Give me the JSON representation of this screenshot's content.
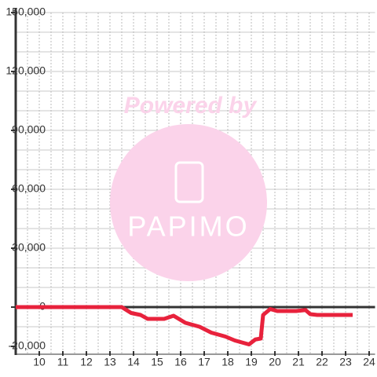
{
  "chart_data": {
    "type": "line",
    "x": [
      9,
      13.5,
      13.9,
      14.3,
      14.6,
      15.3,
      15.7,
      16.2,
      16.8,
      17.3,
      17.9,
      18.3,
      18.9,
      19.17,
      19.4,
      19.5,
      19.8,
      20.1,
      20.9,
      21.3,
      21.5,
      21.8,
      23.3
    ],
    "series": [
      {
        "color": "#e8223c",
        "values": [
          0,
          0,
          -3000,
          -4000,
          -6000,
          -6000,
          -4400,
          -8000,
          -10000,
          -13000,
          -15000,
          -17000,
          -19000,
          -16500,
          -16000,
          -4000,
          -1000,
          -2000,
          -2000,
          -1500,
          -3600,
          -4000,
          -4000
        ]
      }
    ],
    "xlim": [
      9,
      24.25
    ],
    "xticks": [
      10,
      11,
      12,
      13,
      14,
      15,
      16,
      17,
      18,
      19,
      20,
      21,
      22,
      23,
      24
    ],
    "xgrid": [
      9.5,
      10,
      10.5,
      11,
      11.5,
      12,
      12.5,
      13,
      13.5,
      14,
      14.5,
      15,
      15.5,
      16,
      16.5,
      17,
      17.5,
      18,
      18.5,
      19,
      19.5,
      20,
      20.5,
      21,
      21.5,
      22,
      22.5,
      23,
      23.5,
      24
    ],
    "ylim": [
      -20000,
      150000
    ],
    "yticks": [
      {
        "value": -20000,
        "label": "-20,000"
      },
      0,
      {
        "value": 30000,
        "label": "30,000"
      },
      {
        "value": 60000,
        "label": "60,000"
      },
      {
        "value": 90000,
        "label": "90,000"
      },
      {
        "value": 120000,
        "label": "120,000"
      },
      {
        "value": 150000,
        "label": "150,000"
      }
    ],
    "ygrid": [
      -10000,
      10000,
      20000,
      30000,
      40000,
      50000,
      60000,
      70000,
      80000,
      90000,
      100000,
      110000,
      120000,
      130000,
      140000,
      150000
    ],
    "grid": true,
    "watermark": {
      "text": "Powered by",
      "logo": "PAPIMO"
    }
  }
}
